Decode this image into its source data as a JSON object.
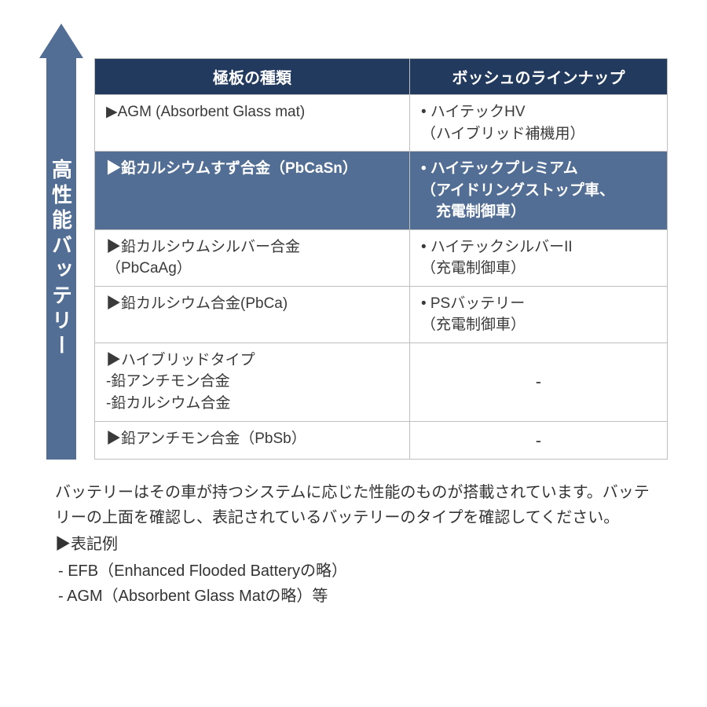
{
  "colors": {
    "arrow": "#536e94",
    "header_bg": "#223a5e",
    "highlight_bg": "#536e94",
    "border": "#bfbfbf",
    "text": "#333333"
  },
  "arrow": {
    "label": "高性能バッテリー"
  },
  "table": {
    "headers": {
      "left": "極板の種類",
      "right": "ボッシュのラインナップ"
    },
    "rows": [
      {
        "left_main": "▶AGM (Absorbent Glass mat)",
        "left_sub": "",
        "right_main": "• ハイテックHV",
        "right_sub": "（ハイブリッド補機用）",
        "highlight": false,
        "dash": false
      },
      {
        "left_main": "▶鉛カルシウムすず合金（PbCaSn）",
        "left_sub": "",
        "right_main": "• ハイテックプレミアム",
        "right_sub": "（アイドリングストップ車、\n　充電制御車）",
        "highlight": true,
        "dash": false
      },
      {
        "left_main": "▶鉛カルシウムシルバー合金",
        "left_sub": "（PbCaAg）",
        "right_main": "• ハイテックシルバーII",
        "right_sub": "（充電制御車）",
        "highlight": false,
        "dash": false
      },
      {
        "left_main": "▶鉛カルシウム合金(PbCa)",
        "left_sub": "",
        "right_main": "• PSバッテリー",
        "right_sub": "（充電制御車）",
        "highlight": false,
        "dash": false
      },
      {
        "left_main": "▶ハイブリッドタイプ",
        "left_sub": " -鉛アンチモン合金\n -鉛カルシウム合金",
        "right_main": "-",
        "right_sub": "",
        "highlight": false,
        "dash": true
      },
      {
        "left_main": "▶鉛アンチモン合金（PbSb）",
        "left_sub": "",
        "right_main": "-",
        "right_sub": "",
        "highlight": false,
        "dash": true
      }
    ]
  },
  "footer": {
    "para": "バッテリーはその車が持つシステムに応じた性能のものが搭載されています。バッテリーの上面を確認し、表記されているバッテリーのタイプを確認してください。",
    "example_heading": "▶表記例",
    "examples": [
      "-   EFB（Enhanced Flooded Batteryの略）",
      "-   AGM（Absorbent Glass Matの略）等"
    ]
  }
}
